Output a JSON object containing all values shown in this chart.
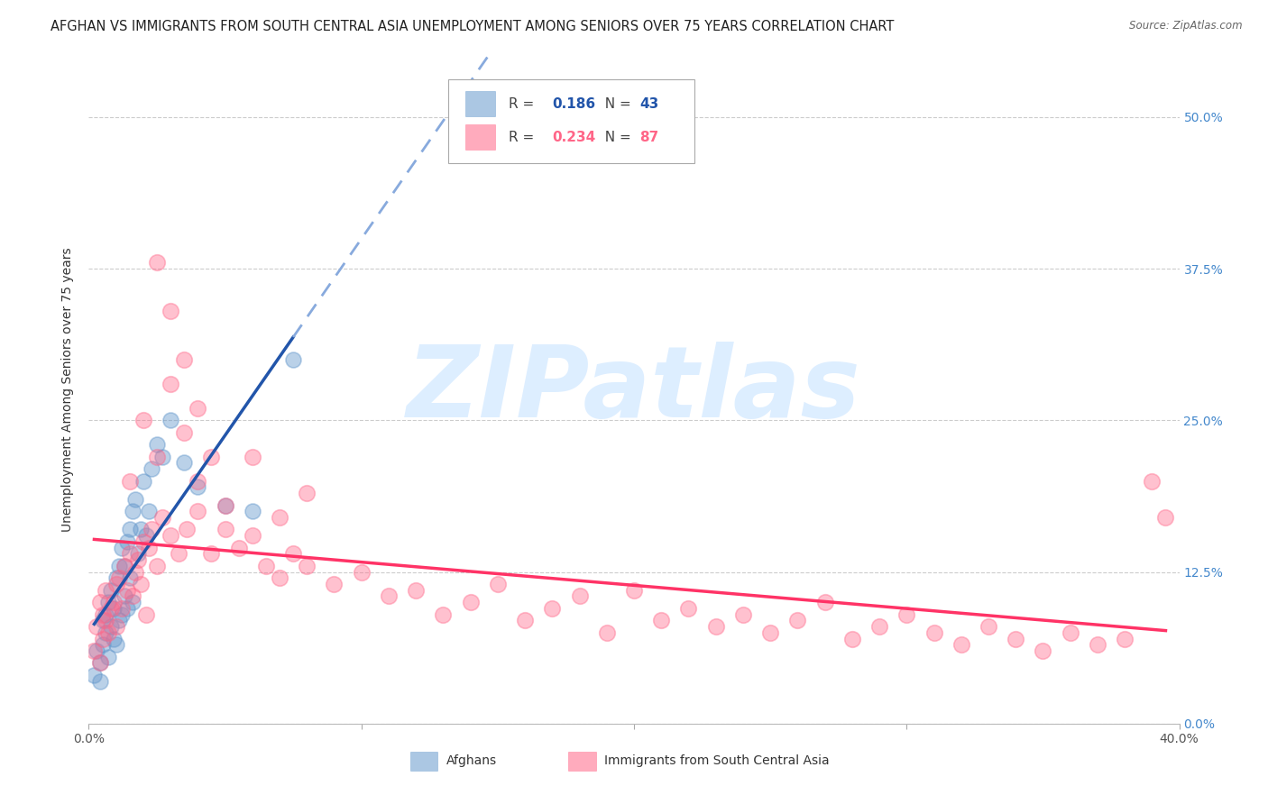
{
  "title": "AFGHAN VS IMMIGRANTS FROM SOUTH CENTRAL ASIA UNEMPLOYMENT AMONG SENIORS OVER 75 YEARS CORRELATION CHART",
  "source": "Source: ZipAtlas.com",
  "ylabel": "Unemployment Among Seniors over 75 years",
  "xlim": [
    0.0,
    0.4
  ],
  "ylim": [
    0.0,
    0.55
  ],
  "xtick_positions": [
    0.0,
    0.1,
    0.2,
    0.3,
    0.4
  ],
  "xtick_labels": [
    "0.0%",
    "",
    "",
    "",
    "40.0%"
  ],
  "yticks": [
    0.0,
    0.125,
    0.25,
    0.375,
    0.5
  ],
  "ytick_labels": [
    "0.0%",
    "12.5%",
    "25.0%",
    "37.5%",
    "50.0%"
  ],
  "afghans_R": 0.186,
  "afghans_N": 43,
  "sca_R": 0.234,
  "sca_N": 87,
  "afghans_color": "#6699CC",
  "sca_color": "#FF6688",
  "trend_afghan_color": "#2255AA",
  "trend_sca_color": "#FF3366",
  "trend_afghan_dashed_color": "#88AADD",
  "watermark": "ZIPatlas",
  "watermark_color": "#DDEEFF",
  "background_color": "#FFFFFF",
  "title_fontsize": 10.5,
  "axis_label_fontsize": 10,
  "tick_label_fontsize": 10,
  "afghans_x": [
    0.002,
    0.003,
    0.004,
    0.004,
    0.005,
    0.005,
    0.006,
    0.006,
    0.007,
    0.007,
    0.008,
    0.008,
    0.009,
    0.009,
    0.01,
    0.01,
    0.011,
    0.011,
    0.012,
    0.012,
    0.013,
    0.013,
    0.014,
    0.014,
    0.015,
    0.015,
    0.016,
    0.016,
    0.017,
    0.018,
    0.019,
    0.02,
    0.021,
    0.022,
    0.023,
    0.025,
    0.027,
    0.03,
    0.035,
    0.04,
    0.05,
    0.06,
    0.075
  ],
  "afghans_y": [
    0.04,
    0.06,
    0.05,
    0.035,
    0.085,
    0.065,
    0.09,
    0.075,
    0.1,
    0.055,
    0.11,
    0.08,
    0.095,
    0.07,
    0.12,
    0.065,
    0.13,
    0.085,
    0.145,
    0.09,
    0.105,
    0.13,
    0.15,
    0.095,
    0.16,
    0.12,
    0.175,
    0.1,
    0.185,
    0.14,
    0.16,
    0.2,
    0.155,
    0.175,
    0.21,
    0.23,
    0.22,
    0.25,
    0.215,
    0.195,
    0.18,
    0.175,
    0.3
  ],
  "sca_x": [
    0.002,
    0.003,
    0.004,
    0.004,
    0.005,
    0.005,
    0.006,
    0.006,
    0.007,
    0.008,
    0.009,
    0.01,
    0.01,
    0.011,
    0.012,
    0.013,
    0.014,
    0.015,
    0.016,
    0.017,
    0.018,
    0.019,
    0.02,
    0.021,
    0.022,
    0.023,
    0.025,
    0.027,
    0.03,
    0.033,
    0.036,
    0.04,
    0.045,
    0.05,
    0.055,
    0.06,
    0.065,
    0.07,
    0.075,
    0.08,
    0.09,
    0.1,
    0.11,
    0.12,
    0.13,
    0.14,
    0.15,
    0.16,
    0.17,
    0.18,
    0.19,
    0.2,
    0.21,
    0.22,
    0.23,
    0.24,
    0.25,
    0.26,
    0.27,
    0.28,
    0.29,
    0.3,
    0.31,
    0.32,
    0.33,
    0.34,
    0.35,
    0.36,
    0.37,
    0.38,
    0.015,
    0.02,
    0.025,
    0.03,
    0.035,
    0.04,
    0.05,
    0.06,
    0.07,
    0.08,
    0.025,
    0.03,
    0.035,
    0.04,
    0.045,
    0.39,
    0.395
  ],
  "sca_y": [
    0.06,
    0.08,
    0.05,
    0.1,
    0.07,
    0.09,
    0.085,
    0.11,
    0.075,
    0.095,
    0.1,
    0.115,
    0.08,
    0.12,
    0.095,
    0.13,
    0.11,
    0.14,
    0.105,
    0.125,
    0.135,
    0.115,
    0.15,
    0.09,
    0.145,
    0.16,
    0.13,
    0.17,
    0.155,
    0.14,
    0.16,
    0.175,
    0.14,
    0.16,
    0.145,
    0.155,
    0.13,
    0.12,
    0.14,
    0.13,
    0.115,
    0.125,
    0.105,
    0.11,
    0.09,
    0.1,
    0.115,
    0.085,
    0.095,
    0.105,
    0.075,
    0.11,
    0.085,
    0.095,
    0.08,
    0.09,
    0.075,
    0.085,
    0.1,
    0.07,
    0.08,
    0.09,
    0.075,
    0.065,
    0.08,
    0.07,
    0.06,
    0.075,
    0.065,
    0.07,
    0.2,
    0.25,
    0.22,
    0.28,
    0.24,
    0.2,
    0.18,
    0.22,
    0.17,
    0.19,
    0.38,
    0.34,
    0.3,
    0.26,
    0.22,
    0.2,
    0.17
  ]
}
